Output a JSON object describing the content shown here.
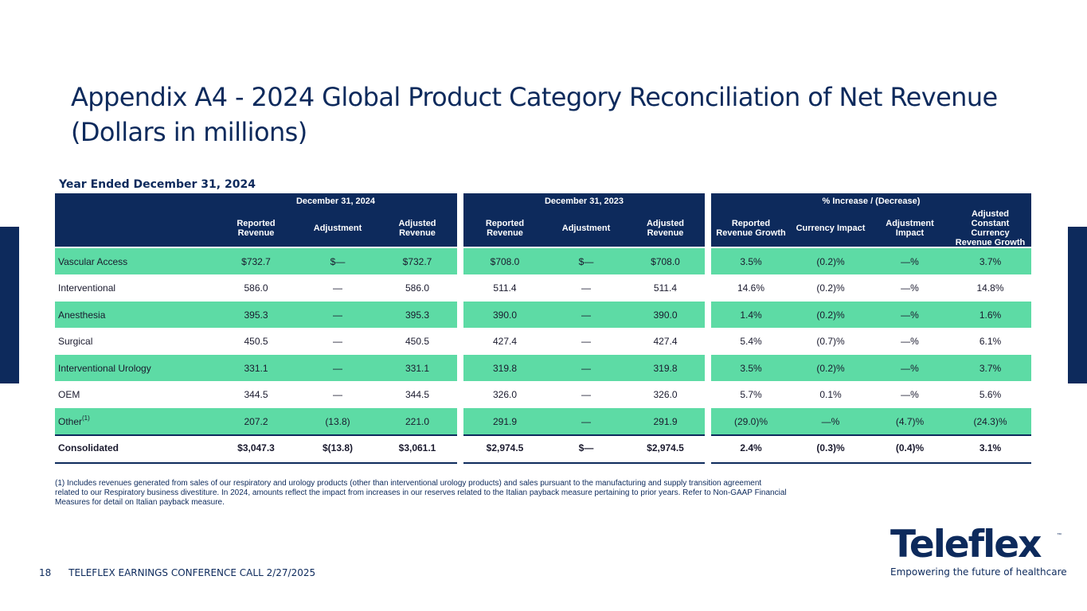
{
  "title": {
    "line1": "Appendix A4 - 2024 Global Product Category Reconciliation of Net Revenue",
    "line2": "(Dollars in millions)"
  },
  "period_label": "Year Ended December 31, 2024",
  "table": {
    "group_headers": [
      "December 31, 2024",
      "December 31, 2023",
      "% Increase / (Decrease)"
    ],
    "column_headers": [
      "Reported Revenue",
      "Adjustment",
      "Adjusted Revenue",
      "Reported Revenue",
      "Adjustment",
      "Adjusted Revenue",
      "Reported Revenue Growth",
      "Currency Impact",
      "Adjustment Impact",
      "Adjusted Constant Currency Revenue Growth"
    ],
    "rows": [
      {
        "label": "Vascular Access",
        "sup": "",
        "values": [
          "$732.7",
          "$—",
          "$732.7",
          "$708.0",
          "$—",
          "$708.0",
          "3.5%",
          "(0.2)%",
          "—%",
          "3.7%"
        ]
      },
      {
        "label": "Interventional",
        "sup": "",
        "values": [
          "586.0",
          "—",
          "586.0",
          "511.4",
          "—",
          "511.4",
          "14.6%",
          "(0.2)%",
          "—%",
          "14.8%"
        ]
      },
      {
        "label": "Anesthesia",
        "sup": "",
        "values": [
          "395.3",
          "—",
          "395.3",
          "390.0",
          "—",
          "390.0",
          "1.4%",
          "(0.2)%",
          "—%",
          "1.6%"
        ]
      },
      {
        "label": "Surgical",
        "sup": "",
        "values": [
          "450.5",
          "—",
          "450.5",
          "427.4",
          "—",
          "427.4",
          "5.4%",
          "(0.7)%",
          "—%",
          "6.1%"
        ]
      },
      {
        "label": "Interventional Urology",
        "sup": "",
        "values": [
          "331.1",
          "—",
          "331.1",
          "319.8",
          "—",
          "319.8",
          "3.5%",
          "(0.2)%",
          "—%",
          "3.7%"
        ]
      },
      {
        "label": "OEM",
        "sup": "",
        "values": [
          "344.5",
          "—",
          "344.5",
          "326.0",
          "—",
          "326.0",
          "5.7%",
          "0.1%",
          "—%",
          "5.6%"
        ]
      },
      {
        "label": "Other",
        "sup": "(1)",
        "values": [
          "207.2",
          "(13.8)",
          "221.0",
          "291.9",
          "—",
          "291.9",
          "(29.0)%",
          "—%",
          "(4.7)%",
          "(24.3)%"
        ]
      },
      {
        "label": "Consolidated",
        "sup": "",
        "values": [
          "$3,047.3",
          "$(13.8)",
          "$3,061.1",
          "$2,974.5",
          "$—",
          "$2,974.5",
          "2.4%",
          "(0.3)%",
          "(0.4)%",
          "3.1%"
        ]
      }
    ]
  },
  "footnote": "(1) Includes revenues generated from sales of our respiratory and urology products (other than interventional urology products) and sales pursuant to the manufacturing and supply transition agreement related to our Respiratory business divestiture. In 2024, amounts reflect the impact from increases in our reserves related to the Italian payback measure pertaining to prior years. Refer to Non-GAAP Financial Measures for detail on Italian payback measure.",
  "footer": {
    "page_number": "18",
    "event": "TELEFLEX EARNINGS CONFERENCE CALL 2/27/2025"
  },
  "logo": {
    "wordmark": "Teleflex",
    "tm": "™",
    "tagline": "Empowering the future of healthcare"
  },
  "colors": {
    "navy": "#0d2a5c",
    "green_row": "#5ddba5"
  }
}
